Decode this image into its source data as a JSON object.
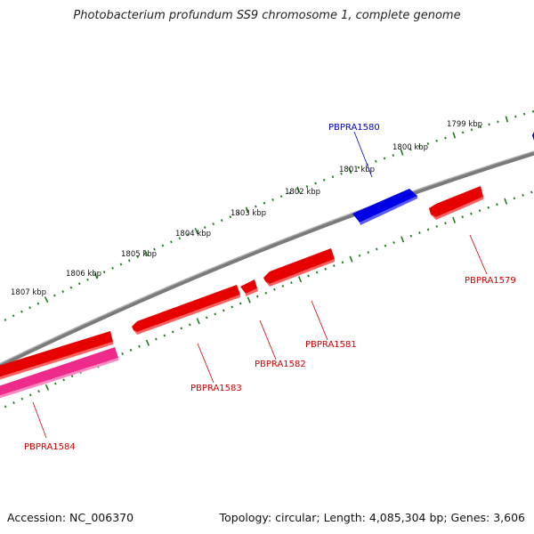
{
  "title": "Photobacterium profundum SS9 chromosome 1, complete genome",
  "footer": {
    "accession": "Accession: NC_006370",
    "summary": "Topology: circular; Length: 4,085,304 bp; Genes: 3,606"
  },
  "colors": {
    "backbone": "#808080",
    "ticks": "#1a7f1a",
    "forward_gene": "#0000ee",
    "reverse_gene": "#ee0000",
    "pink_gene": "#ee2a8a",
    "forward_label": "#0000cc",
    "reverse_label": "#cc0000"
  },
  "kbp_labels": [
    "1799 kbp",
    "1800 kbp",
    "1801 kbp",
    "1802 kbp",
    "1803 kbp",
    "1804 kbp",
    "1805 kbp",
    "1806 kbp",
    "1807 kbp"
  ],
  "genes": [
    {
      "id": "PBPRA1580",
      "strand": "forward",
      "color": "blue"
    },
    {
      "id": "PBPRA1579",
      "strand": "reverse",
      "color": "red"
    },
    {
      "id": "PBPRA1581",
      "strand": "reverse",
      "color": "red"
    },
    {
      "id": "PBPRA1582",
      "strand": "reverse",
      "color": "red"
    },
    {
      "id": "PBPRA1583",
      "strand": "reverse",
      "color": "red"
    },
    {
      "id": "PBPRA1584",
      "strand": "reverse",
      "color": "pink"
    }
  ]
}
